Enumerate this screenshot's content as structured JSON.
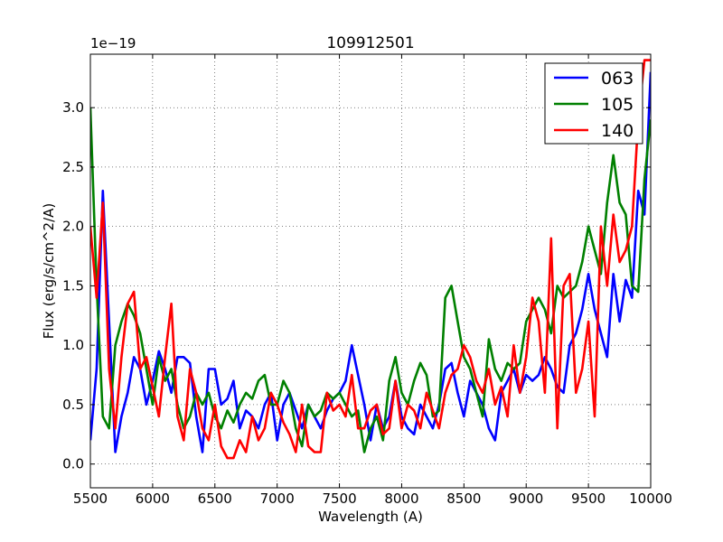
{
  "chart_data": {
    "type": "line",
    "title": "109912501",
    "xlabel": "Wavelength (A)",
    "ylabel": "Flux (erg/s/cm^2/A)",
    "y_multiplier": "1e−19",
    "xlim": [
      5500,
      10000
    ],
    "ylim": [
      -0.2,
      3.45
    ],
    "x_ticks": [
      5500,
      6000,
      6500,
      7000,
      7500,
      8000,
      8500,
      9000,
      9500,
      10000
    ],
    "x_tick_labels": [
      "5500",
      "6000",
      "6500",
      "7000",
      "7500",
      "8000",
      "8500",
      "9000",
      "9500",
      "10000"
    ],
    "y_ticks": [
      0.0,
      0.5,
      1.0,
      1.5,
      2.0,
      2.5,
      3.0
    ],
    "y_tick_labels": [
      "0.0",
      "0.5",
      "1.0",
      "1.5",
      "2.0",
      "2.5",
      "3.0"
    ],
    "grid": true,
    "legend_position": "top-right",
    "x": [
      5500,
      5550,
      5600,
      5650,
      5700,
      5750,
      5800,
      5850,
      5900,
      5950,
      6000,
      6050,
      6100,
      6150,
      6200,
      6250,
      6300,
      6350,
      6400,
      6450,
      6500,
      6550,
      6600,
      6650,
      6700,
      6750,
      6800,
      6850,
      6900,
      6950,
      7000,
      7050,
      7100,
      7150,
      7200,
      7250,
      7300,
      7350,
      7400,
      7450,
      7500,
      7550,
      7600,
      7650,
      7700,
      7750,
      7800,
      7850,
      7900,
      7950,
      8000,
      8050,
      8100,
      8150,
      8200,
      8250,
      8300,
      8350,
      8400,
      8450,
      8500,
      8550,
      8600,
      8650,
      8700,
      8750,
      8800,
      8850,
      8900,
      8950,
      9000,
      9050,
      9100,
      9150,
      9200,
      9250,
      9300,
      9350,
      9400,
      9450,
      9500,
      9550,
      9600,
      9650,
      9700,
      9750,
      9800,
      9850,
      9900,
      9950,
      10000
    ],
    "series": [
      {
        "name": "063",
        "color": "#0000ff",
        "values": [
          0.2,
          0.8,
          2.3,
          1.2,
          0.1,
          0.4,
          0.6,
          0.9,
          0.8,
          0.5,
          0.7,
          0.95,
          0.8,
          0.6,
          0.9,
          0.9,
          0.85,
          0.4,
          0.1,
          0.8,
          0.8,
          0.5,
          0.55,
          0.7,
          0.3,
          0.45,
          0.4,
          0.3,
          0.5,
          0.6,
          0.2,
          0.5,
          0.6,
          0.45,
          0.3,
          0.5,
          0.4,
          0.3,
          0.45,
          0.55,
          0.6,
          0.7,
          1.0,
          0.75,
          0.5,
          0.2,
          0.5,
          0.3,
          0.4,
          0.7,
          0.4,
          0.3,
          0.25,
          0.5,
          0.4,
          0.3,
          0.5,
          0.8,
          0.85,
          0.6,
          0.4,
          0.7,
          0.6,
          0.5,
          0.3,
          0.2,
          0.6,
          0.7,
          0.8,
          0.6,
          0.75,
          0.7,
          0.75,
          0.9,
          0.8,
          0.65,
          0.6,
          1.0,
          1.1,
          1.3,
          1.6,
          1.3,
          1.1,
          0.9,
          1.6,
          1.2,
          1.55,
          1.4,
          2.3,
          2.1,
          3.3
        ]
      },
      {
        "name": "105",
        "color": "#008000",
        "values": [
          3.0,
          1.5,
          0.4,
          0.3,
          1.0,
          1.2,
          1.35,
          1.25,
          1.1,
          0.8,
          0.5,
          0.9,
          0.7,
          0.8,
          0.5,
          0.3,
          0.4,
          0.6,
          0.5,
          0.6,
          0.4,
          0.3,
          0.45,
          0.35,
          0.5,
          0.6,
          0.55,
          0.7,
          0.75,
          0.5,
          0.5,
          0.7,
          0.6,
          0.3,
          0.15,
          0.5,
          0.4,
          0.45,
          0.6,
          0.55,
          0.6,
          0.5,
          0.4,
          0.45,
          0.1,
          0.3,
          0.4,
          0.2,
          0.7,
          0.9,
          0.6,
          0.5,
          0.7,
          0.85,
          0.75,
          0.4,
          0.45,
          1.4,
          1.5,
          1.2,
          0.9,
          0.8,
          0.6,
          0.4,
          1.05,
          0.8,
          0.7,
          0.85,
          0.8,
          0.85,
          1.2,
          1.3,
          1.4,
          1.3,
          1.1,
          1.5,
          1.4,
          1.45,
          1.5,
          1.7,
          2.0,
          1.8,
          1.6,
          2.2,
          2.6,
          2.2,
          2.1,
          1.5,
          1.45,
          2.4,
          2.9
        ]
      },
      {
        "name": "140",
        "color": "#ff0000",
        "values": [
          2.0,
          1.4,
          2.2,
          0.8,
          0.3,
          0.9,
          1.35,
          1.45,
          0.8,
          0.9,
          0.65,
          0.4,
          0.9,
          1.35,
          0.4,
          0.2,
          0.8,
          0.6,
          0.3,
          0.2,
          0.5,
          0.15,
          0.05,
          0.05,
          0.2,
          0.1,
          0.4,
          0.2,
          0.3,
          0.6,
          0.5,
          0.35,
          0.25,
          0.1,
          0.5,
          0.15,
          0.1,
          0.1,
          0.6,
          0.45,
          0.5,
          0.4,
          0.75,
          0.3,
          0.3,
          0.45,
          0.5,
          0.25,
          0.3,
          0.7,
          0.3,
          0.5,
          0.45,
          0.3,
          0.6,
          0.45,
          0.3,
          0.6,
          0.75,
          0.8,
          1.0,
          0.9,
          0.7,
          0.6,
          0.8,
          0.5,
          0.65,
          0.4,
          1.0,
          0.6,
          0.9,
          1.4,
          1.2,
          0.6,
          1.9,
          0.3,
          1.5,
          1.6,
          0.6,
          0.8,
          1.2,
          0.4,
          2.0,
          1.5,
          2.1,
          1.7,
          1.8,
          2.0,
          2.9,
          3.4,
          3.4
        ]
      }
    ]
  }
}
